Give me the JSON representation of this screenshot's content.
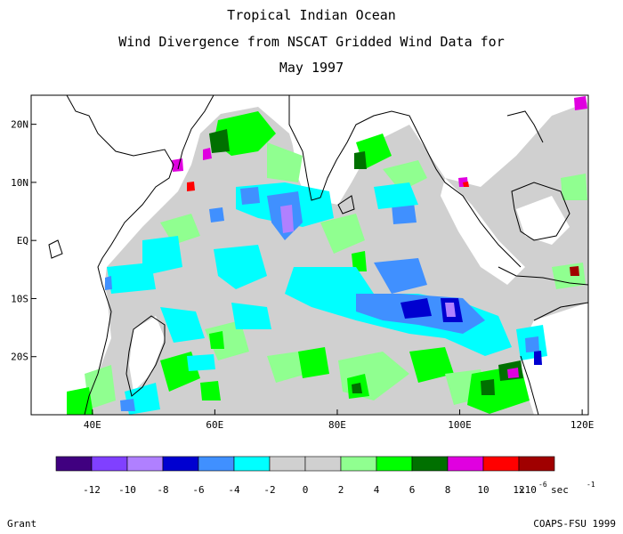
{
  "header": {
    "line1": "Tropical Indian Ocean",
    "line2": "Wind Divergence from NSCAT Gridded Wind Data for",
    "line3": "May 1997"
  },
  "axes": {
    "lat_ticks": [
      {
        "value": 20,
        "label": "20N"
      },
      {
        "value": 10,
        "label": "10N"
      },
      {
        "value": 0,
        "label": "EQ"
      },
      {
        "value": -10,
        "label": "10S"
      },
      {
        "value": -20,
        "label": "20S"
      }
    ],
    "lon_ticks": [
      {
        "value": 40,
        "label": "40E"
      },
      {
        "value": 60,
        "label": "60E"
      },
      {
        "value": 80,
        "label": "80E"
      },
      {
        "value": 100,
        "label": "100E"
      },
      {
        "value": 120,
        "label": "120E"
      }
    ],
    "lon_range": [
      30,
      121
    ],
    "lat_range": [
      -30,
      25
    ]
  },
  "legend": {
    "colors": [
      "#400080",
      "#8040ff",
      "#b080ff",
      "#0000d0",
      "#4090ff",
      "#00ffff",
      "#d0d0d0",
      "#d0d0d0",
      "#90ff90",
      "#00ff00",
      "#007000",
      "#e000e0",
      "#ff0000",
      "#a00000"
    ],
    "labels": [
      "-12",
      "-10",
      "-8",
      "-6",
      "-4",
      "-2",
      "0",
      "2",
      "4",
      "6",
      "8",
      "10",
      "12"
    ],
    "unit_prefix": "x10",
    "unit_exp": "-6",
    "unit_mid": "sec",
    "unit_exp2": "-1"
  },
  "footer": {
    "left": "Grant",
    "right": "COAPS-FSU 1999"
  }
}
